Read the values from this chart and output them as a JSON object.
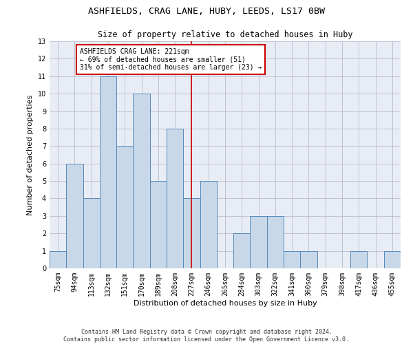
{
  "title1": "ASHFIELDS, CRAG LANE, HUBY, LEEDS, LS17 0BW",
  "title2": "Size of property relative to detached houses in Huby",
  "xlabel": "Distribution of detached houses by size in Huby",
  "ylabel": "Number of detached properties",
  "categories": [
    "75sqm",
    "94sqm",
    "113sqm",
    "132sqm",
    "151sqm",
    "170sqm",
    "189sqm",
    "208sqm",
    "227sqm",
    "246sqm",
    "265sqm",
    "284sqm",
    "303sqm",
    "322sqm",
    "341sqm",
    "360sqm",
    "379sqm",
    "398sqm",
    "417sqm",
    "436sqm",
    "455sqm"
  ],
  "values": [
    1,
    6,
    4,
    11,
    7,
    10,
    5,
    8,
    4,
    5,
    0,
    2,
    3,
    3,
    1,
    1,
    0,
    0,
    1,
    0,
    1
  ],
  "bar_color": "#c8d8e8",
  "bar_edge_color": "#5588bb",
  "vline_x": 8.0,
  "vline_color": "#cc0000",
  "annotation_title": "ASHFIELDS CRAG LANE: 221sqm",
  "annotation_line1": "← 69% of detached houses are smaller (51)",
  "annotation_line2": "31% of semi-detached houses are larger (23) →",
  "annotation_box_color": "#ffffff",
  "annotation_box_edge": "#cc0000",
  "ylim": [
    0,
    13
  ],
  "yticks": [
    0,
    1,
    2,
    3,
    4,
    5,
    6,
    7,
    8,
    9,
    10,
    11,
    12,
    13
  ],
  "grid_color": "#bbbbcc",
  "plot_bg_color": "#e8edf5",
  "background_color": "#ffffff",
  "footer": "Contains HM Land Registry data © Crown copyright and database right 2024.\nContains public sector information licensed under the Open Government Licence v3.0.",
  "title1_fontsize": 9.5,
  "title2_fontsize": 8.5,
  "xlabel_fontsize": 8,
  "ylabel_fontsize": 8,
  "tick_fontsize": 7,
  "annotation_fontsize": 7,
  "footer_fontsize": 6
}
